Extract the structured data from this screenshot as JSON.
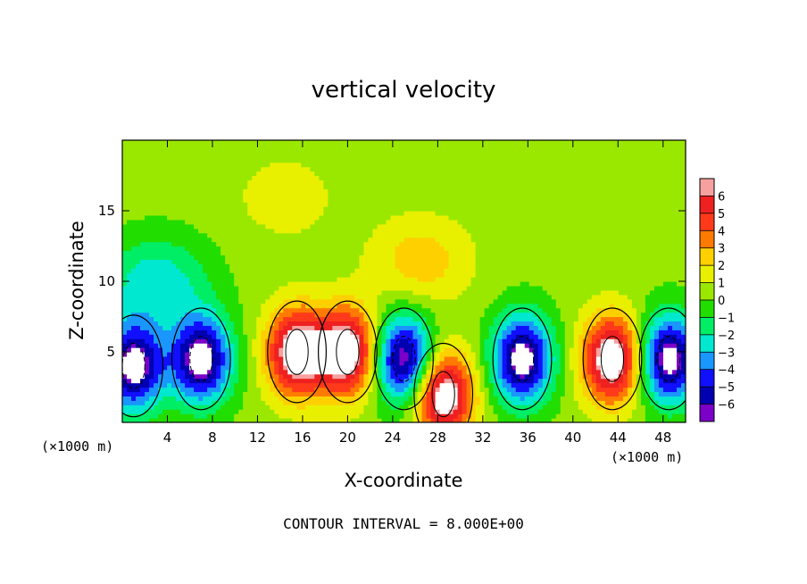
{
  "chart_data": {
    "type": "heatmap",
    "title": "vertical velocity",
    "xlabel": "X-coordinate",
    "ylabel": "Z-coordinate",
    "x_units": "(×1000 m)",
    "y_units": "(×1000 m)",
    "xlim": [
      0,
      50
    ],
    "ylim": [
      0,
      20
    ],
    "x_ticks": [
      4,
      8,
      12,
      16,
      20,
      24,
      28,
      32,
      36,
      40,
      44,
      48
    ],
    "y_ticks": [
      5,
      10,
      15
    ],
    "colorbar": {
      "levels": [
        6,
        5,
        4,
        3,
        2,
        1,
        0,
        -1,
        -2,
        -3,
        -4,
        -5,
        -6
      ],
      "colors": [
        "#f7a0a0",
        "#ee2020",
        "#ff3a1a",
        "#ff7a00",
        "#ffd000",
        "#e8f000",
        "#9ae800",
        "#22dd00",
        "#00ee66",
        "#00e8d0",
        "#1a96ff",
        "#1010ff",
        "#0000b0",
        "#7b00c8"
      ]
    },
    "features": [
      {
        "kind": "updraft",
        "x": 15.5,
        "z": 5.0,
        "peak": 6
      },
      {
        "kind": "updraft",
        "x": 20.0,
        "z": 5.0,
        "peak": 6
      },
      {
        "kind": "updraft",
        "x": 28.5,
        "z": 2.0,
        "peak": 6
      },
      {
        "kind": "updraft",
        "x": 43.5,
        "z": 4.5,
        "peak": 6
      },
      {
        "kind": "downdraft",
        "x": 7.0,
        "z": 4.5,
        "peak": -6
      },
      {
        "kind": "downdraft",
        "x": 25.0,
        "z": 4.5,
        "peak": -6
      },
      {
        "kind": "downdraft",
        "x": 35.5,
        "z": 4.5,
        "peak": -6
      },
      {
        "kind": "downdraft",
        "x": 48.5,
        "z": 4.5,
        "peak": -6
      },
      {
        "kind": "downdraft",
        "x": 1.0,
        "z": 4.0,
        "peak": -6
      },
      {
        "kind": "weak-downdraft",
        "x": 3.0,
        "z": 10.0,
        "peak": -2.5
      },
      {
        "kind": "weak-updraft",
        "x": 26.5,
        "z": 11.5,
        "peak": 1.8
      },
      {
        "kind": "weak-updraft",
        "x": 14.5,
        "z": 16.0,
        "peak": 1.0
      }
    ],
    "footer": "CONTOUR INTERVAL = 8.000E+00",
    "grid": false,
    "legend_placement": "right"
  }
}
